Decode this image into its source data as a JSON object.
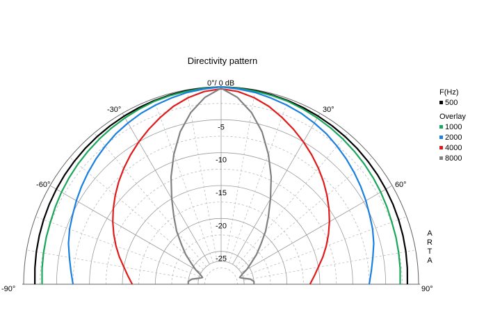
{
  "chart_data": {
    "type": "polar",
    "title": "Directivity pattern",
    "angle_range_deg": [
      -90,
      90
    ],
    "angle_ticks": [
      -90,
      -60,
      -30,
      0,
      30,
      60,
      90
    ],
    "angle_tick_labels": [
      "-90°",
      "-60°",
      "-30°",
      "0°/ 0 dB",
      "30°",
      "60°",
      "90°"
    ],
    "radial_ticks_db": [
      -5,
      -10,
      -15,
      -20,
      -25
    ],
    "radial_tick_labels": [
      "-5",
      "-10",
      "-15",
      "-20",
      "-25"
    ],
    "radial_range_db": [
      -30,
      0
    ],
    "grid": true,
    "legend_position": "right",
    "legend_header": "F(Hz)",
    "overlay_label": "Overlay",
    "angles_deg": [
      0,
      5,
      10,
      15,
      20,
      25,
      30,
      35,
      40,
      45,
      50,
      55,
      60,
      65,
      70,
      75,
      80,
      85,
      90
    ],
    "series": [
      {
        "name": "500",
        "color": "#000000",
        "values_db": [
          0,
          -0.05,
          -0.1,
          -0.2,
          -0.3,
          -0.4,
          -0.5,
          -0.6,
          -0.7,
          -0.8,
          -0.9,
          -1.0,
          -1.1,
          -1.2,
          -1.3,
          -1.4,
          -1.5,
          -1.6,
          -1.7
        ]
      },
      {
        "name": "1000",
        "color": "#1aa65a",
        "values_db": [
          0,
          -0.1,
          -0.2,
          -0.3,
          -0.4,
          -0.6,
          -0.8,
          -1.0,
          -1.2,
          -1.4,
          -1.6,
          -1.8,
          -2.0,
          -2.2,
          -2.4,
          -2.5,
          -2.6,
          -2.7,
          -2.8
        ]
      },
      {
        "name": "2000",
        "color": "#1a7fe0",
        "values_db": [
          0,
          -0.2,
          -0.4,
          -0.7,
          -1.0,
          -1.3,
          -1.7,
          -2.1,
          -2.6,
          -3.1,
          -3.6,
          -4.1,
          -4.6,
          -5.1,
          -5.5,
          -6.0,
          -6.6,
          -7.1,
          -7.5
        ]
      },
      {
        "name": "4000",
        "color": "#e01a1a",
        "values_db": [
          -0.3,
          -0.6,
          -1.2,
          -2.0,
          -3.0,
          -4.0,
          -5.0,
          -6.0,
          -7.0,
          -8.0,
          -9.0,
          -10.0,
          -11.0,
          -12.0,
          -13.0,
          -14.0,
          -15.0,
          -15.8,
          -16.5
        ]
      },
      {
        "name": "8000",
        "color": "#808080",
        "values_db": [
          -0.2,
          -1.5,
          -3.5,
          -6.0,
          -9.0,
          -12.0,
          -15.0,
          -17.5,
          -19.5,
          -21.5,
          -23.0,
          -24.5,
          -25.5,
          -26.5,
          -27.0,
          -26.5,
          -25.5,
          -25.0,
          -25.0
        ]
      }
    ]
  },
  "watermark": [
    "A",
    "R",
    "T",
    "A"
  ]
}
